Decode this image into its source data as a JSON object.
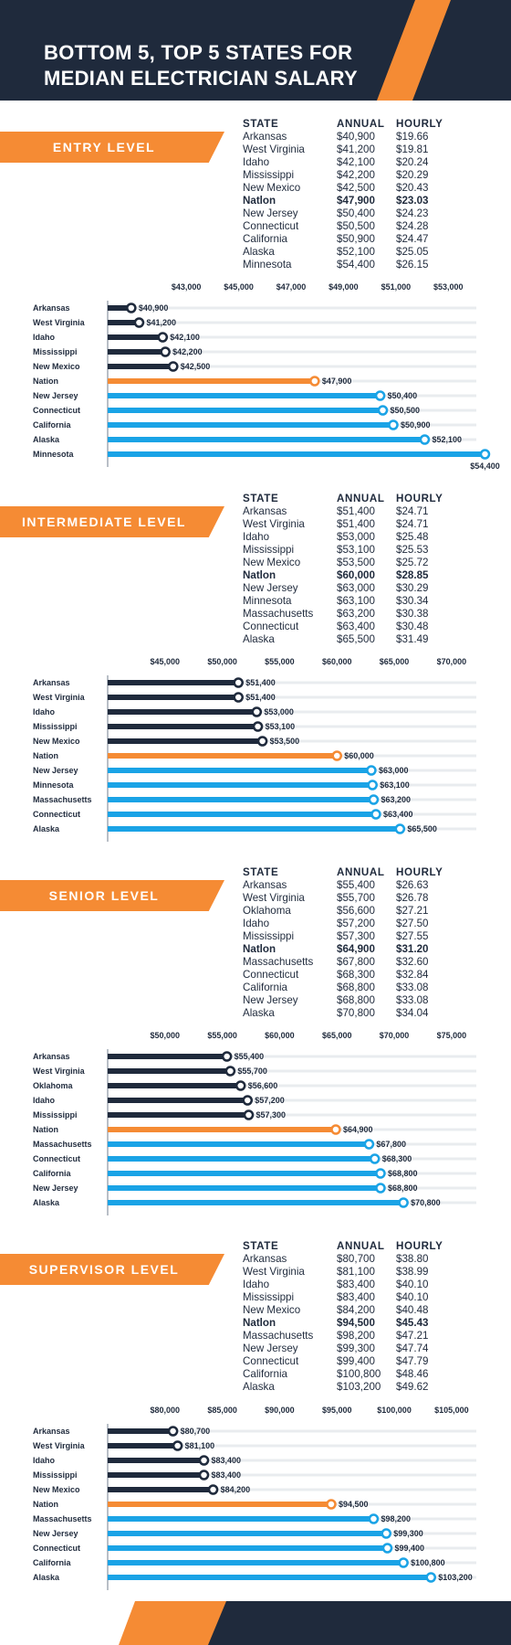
{
  "title_lines": [
    "BOTTOM 5, TOP 5 STATES FOR",
    "MEDIAN ELECTRICIAN SALARY"
  ],
  "colors": {
    "navy": "#1f2a3c",
    "orange": "#f58b34",
    "blue": "#1aa3e6",
    "track": "#e9ecef"
  },
  "table_headers": {
    "state": "STATE",
    "annual": "ANNUAL",
    "hourly": "HOURLY"
  },
  "sections": [
    {
      "label": "ENTRY LEVEL",
      "rows": [
        {
          "state": "Arkansas",
          "annual": "$40,900",
          "hourly": "$19.66"
        },
        {
          "state": "West Virginia",
          "annual": "$41,200",
          "hourly": "$19.81"
        },
        {
          "state": "Idaho",
          "annual": "$42,100",
          "hourly": "$20.24"
        },
        {
          "state": "Mississippi",
          "annual": "$42,200",
          "hourly": "$20.29"
        },
        {
          "state": "New Mexico",
          "annual": "$42,500",
          "hourly": "$20.43"
        },
        {
          "state": "Natlon",
          "annual": "$47,900",
          "hourly": "$23.03",
          "bold": true
        },
        {
          "state": "New Jersey",
          "annual": "$50,400",
          "hourly": "$24.23"
        },
        {
          "state": "Connecticut",
          "annual": "$50,500",
          "hourly": "$24.28"
        },
        {
          "state": "California",
          "annual": "$50,900",
          "hourly": "$24.47"
        },
        {
          "state": "Alaska",
          "annual": "$52,100",
          "hourly": "$25.05"
        },
        {
          "state": "Minnesota",
          "annual": "$54,400",
          "hourly": "$26.15"
        }
      ]
    },
    {
      "label": "INTERMEDIATE LEVEL",
      "rows": [
        {
          "state": "Arkansas",
          "annual": "$51,400",
          "hourly": "$24.71"
        },
        {
          "state": "West Virginia",
          "annual": "$51,400",
          "hourly": "$24.71"
        },
        {
          "state": "Idaho",
          "annual": "$53,000",
          "hourly": "$25.48"
        },
        {
          "state": "Mississippi",
          "annual": "$53,100",
          "hourly": "$25.53"
        },
        {
          "state": "New Mexico",
          "annual": "$53,500",
          "hourly": "$25.72"
        },
        {
          "state": "Natlon",
          "annual": "$60,000",
          "hourly": "$28.85",
          "bold": true
        },
        {
          "state": "New Jersey",
          "annual": "$63,000",
          "hourly": "$30.29"
        },
        {
          "state": "Minnesota",
          "annual": "$63,100",
          "hourly": "$30.34"
        },
        {
          "state": "Massachusetts",
          "annual": "$63,200",
          "hourly": "$30.38"
        },
        {
          "state": "Connecticut",
          "annual": "$63,400",
          "hourly": "$30.48"
        },
        {
          "state": "Alaska",
          "annual": "$65,500",
          "hourly": "$31.49"
        }
      ]
    },
    {
      "label": "SENIOR LEVEL",
      "rows": [
        {
          "state": "Arkansas",
          "annual": "$55,400",
          "hourly": "$26.63"
        },
        {
          "state": "West Virginia",
          "annual": "$55,700",
          "hourly": "$26.78"
        },
        {
          "state": "Oklahoma",
          "annual": "$56,600",
          "hourly": "$27.21"
        },
        {
          "state": "Idaho",
          "annual": "$57,200",
          "hourly": "$27.50"
        },
        {
          "state": "Mississippi",
          "annual": "$57,300",
          "hourly": "$27.55"
        },
        {
          "state": "Natlon",
          "annual": "$64,900",
          "hourly": "$31.20",
          "bold": true
        },
        {
          "state": "Massachusetts",
          "annual": "$67,800",
          "hourly": "$32.60"
        },
        {
          "state": "Connecticut",
          "annual": "$68,300",
          "hourly": "$32.84"
        },
        {
          "state": "California",
          "annual": "$68,800",
          "hourly": "$33.08"
        },
        {
          "state": "New Jersey",
          "annual": "$68,800",
          "hourly": "$33.08"
        },
        {
          "state": "Alaska",
          "annual": "$70,800",
          "hourly": "$34.04"
        }
      ]
    },
    {
      "label": "SUPERVISOR LEVEL",
      "rows": [
        {
          "state": "Arkansas",
          "annual": "$80,700",
          "hourly": "$38.80"
        },
        {
          "state": "West Virginia",
          "annual": "$81,100",
          "hourly": "$38.99"
        },
        {
          "state": "Idaho",
          "annual": "$83,400",
          "hourly": "$40.10"
        },
        {
          "state": "Mississippi",
          "annual": "$83,400",
          "hourly": "$40.10"
        },
        {
          "state": "New Mexico",
          "annual": "$84,200",
          "hourly": "$40.48"
        },
        {
          "state": "Natlon",
          "annual": "$94,500",
          "hourly": "$45.43",
          "bold": true
        },
        {
          "state": "Massachusetts",
          "annual": "$98,200",
          "hourly": "$47.21"
        },
        {
          "state": "New Jersey",
          "annual": "$99,300",
          "hourly": "$47.74"
        },
        {
          "state": "Connecticut",
          "annual": "$99,400",
          "hourly": "$47.79"
        },
        {
          "state": "California",
          "annual": "$100,800",
          "hourly": "$48.46"
        },
        {
          "state": "Alaska",
          "annual": "$103,200",
          "hourly": "$49.62"
        }
      ]
    }
  ],
  "chart_data": [
    {
      "type": "bar",
      "orientation": "horizontal",
      "xlim": [
        40000,
        54000
      ],
      "ticks": [
        43000,
        45000,
        47000,
        49000,
        51000,
        53000
      ],
      "tick_labels": [
        "$43,000",
        "$45,000",
        "$47,000",
        "$49,000",
        "$51,000",
        "$53,000"
      ],
      "categories": [
        "Arkansas",
        "West Virginia",
        "Idaho",
        "Mississippi",
        "New Mexico",
        "Nation",
        "New Jersey",
        "Connecticut",
        "California",
        "Alaska",
        "Minnesota"
      ],
      "values": [
        40900,
        41200,
        42100,
        42200,
        42500,
        47900,
        50400,
        50500,
        50900,
        52100,
        54400
      ],
      "value_labels": [
        "$40,900",
        "$41,200",
        "$42,100",
        "$42,200",
        "$42,500",
        "$47,900",
        "$50,400",
        "$50,500",
        "$50,900",
        "$52,100",
        "$54,400"
      ],
      "groups": [
        "bottom",
        "bottom",
        "bottom",
        "bottom",
        "bottom",
        "nation",
        "top",
        "top",
        "top",
        "top",
        "top"
      ]
    },
    {
      "type": "bar",
      "orientation": "horizontal",
      "xlim": [
        40000,
        72000
      ],
      "ticks": [
        45000,
        50000,
        55000,
        60000,
        65000,
        70000
      ],
      "tick_labels": [
        "$45,000",
        "$50,000",
        "$55,000",
        "$60,000",
        "$65,000",
        "$70,000"
      ],
      "categories": [
        "Arkansas",
        "West Virginia",
        "Idaho",
        "Mississippi",
        "New Mexico",
        "Nation",
        "New Jersey",
        "Minnesota",
        "Massachusetts",
        "Connecticut",
        "Alaska"
      ],
      "values": [
        51400,
        51400,
        53000,
        53100,
        53500,
        60000,
        63000,
        63100,
        63200,
        63400,
        65500
      ],
      "value_labels": [
        "$51,400",
        "$51,400",
        "$53,000",
        "$53,100",
        "$53,500",
        "$60,000",
        "$63,000",
        "$63,100",
        "$63,200",
        "$63,400",
        "$65,500"
      ],
      "groups": [
        "bottom",
        "bottom",
        "bottom",
        "bottom",
        "bottom",
        "nation",
        "top",
        "top",
        "top",
        "top",
        "top"
      ]
    },
    {
      "type": "bar",
      "orientation": "horizontal",
      "xlim": [
        45000,
        77000
      ],
      "ticks": [
        50000,
        55000,
        60000,
        65000,
        70000,
        75000
      ],
      "tick_labels": [
        "$50,000",
        "$55,000",
        "$60,000",
        "$65,000",
        "$70,000",
        "$75,000"
      ],
      "categories": [
        "Arkansas",
        "West Virginia",
        "Oklahoma",
        "Idaho",
        "Mississippi",
        "Nation",
        "Massachusetts",
        "Connecticut",
        "California",
        "New Jersey",
        "Alaska"
      ],
      "values": [
        55400,
        55700,
        56600,
        57200,
        57300,
        64900,
        67800,
        68300,
        68800,
        68800,
        70800
      ],
      "value_labels": [
        "$55,400",
        "$55,700",
        "$56,600",
        "$57,200",
        "$57,300",
        "$64,900",
        "$67,800",
        "$68,300",
        "$68,800",
        "$68,800",
        "$70,800"
      ],
      "groups": [
        "bottom",
        "bottom",
        "bottom",
        "bottom",
        "bottom",
        "nation",
        "top",
        "top",
        "top",
        "top",
        "top"
      ]
    },
    {
      "type": "bar",
      "orientation": "horizontal",
      "xlim": [
        75000,
        107000
      ],
      "ticks": [
        80000,
        85000,
        90000,
        95000,
        100000,
        105000
      ],
      "tick_labels": [
        "$80,000",
        "$85,000",
        "$90,000",
        "$95,000",
        "$100,000",
        "$105,000"
      ],
      "categories": [
        "Arkansas",
        "West Virginia",
        "Idaho",
        "Mississippi",
        "New Mexico",
        "Nation",
        "Massachusetts",
        "New Jersey",
        "Connecticut",
        "California",
        "Alaska"
      ],
      "values": [
        80700,
        81100,
        83400,
        83400,
        84200,
        94500,
        98200,
        99300,
        99400,
        100800,
        103200
      ],
      "value_labels": [
        "$80,700",
        "$81,100",
        "$83,400",
        "$83,400",
        "$84,200",
        "$94,500",
        "$98,200",
        "$99,300",
        "$99,400",
        "$100,800",
        "$103,200"
      ],
      "groups": [
        "bottom",
        "bottom",
        "bottom",
        "bottom",
        "bottom",
        "nation",
        "top",
        "top",
        "top",
        "top",
        "top"
      ]
    }
  ]
}
